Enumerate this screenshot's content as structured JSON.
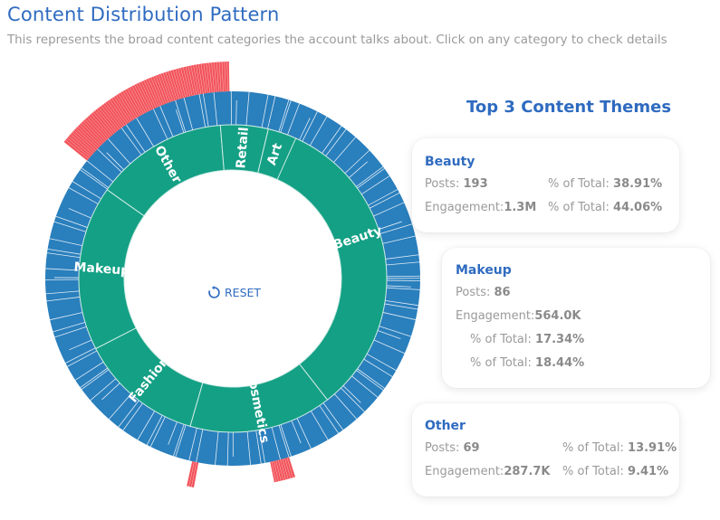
{
  "header": {
    "title": "Content Distribution Pattern",
    "subtitle": "This represents the broad content categories the account talks about. Click on any category to check details"
  },
  "chart_data": {
    "type": "sunburst",
    "inner_ring": [
      {
        "name": "Beauty",
        "share": 0.3891
      },
      {
        "name": "Cosmetics",
        "share": 0.15
      },
      {
        "name": "Fashion",
        "share": 0.13
      },
      {
        "name": "Makeup",
        "share": 0.1734
      },
      {
        "name": "Other",
        "share": 0.1391
      },
      {
        "name": "Retail",
        "share": 0.05
      },
      {
        "name": "Art",
        "share": 0.03
      }
    ],
    "colors": {
      "inner_ring": "#14a085",
      "outer_ring": "#2a7fbd",
      "highlight": "#f2545b",
      "segment_lines": "#ffffff"
    }
  },
  "center": {
    "reset_label": "RESET",
    "icon": "refresh-icon"
  },
  "themes": {
    "title": "Top 3 Content Themes",
    "cards": [
      {
        "name": "Beauty",
        "posts_label": "Posts: ",
        "posts": "193",
        "posts_pct_label": "% of Total: ",
        "posts_pct": "38.91%",
        "eng_label": "Engagement:",
        "eng": "1.3M",
        "eng_pct_label": "% of Total: ",
        "eng_pct": "44.06%"
      },
      {
        "name": "Makeup",
        "posts_label": "Posts: ",
        "posts": "86",
        "posts_pct_label": "% of Total: ",
        "posts_pct": "17.34%",
        "eng_label": "Engagement:",
        "eng": "564.0K",
        "eng_pct_label": "% of Total: ",
        "eng_pct": "18.44%"
      },
      {
        "name": "Other",
        "posts_label": "Posts: ",
        "posts": "69",
        "posts_pct_label": "% of Total: ",
        "posts_pct": "13.91%",
        "eng_label": "Engagement:",
        "eng": "287.7K",
        "eng_pct_label": "% of Total: ",
        "eng_pct": "9.41%"
      }
    ]
  }
}
